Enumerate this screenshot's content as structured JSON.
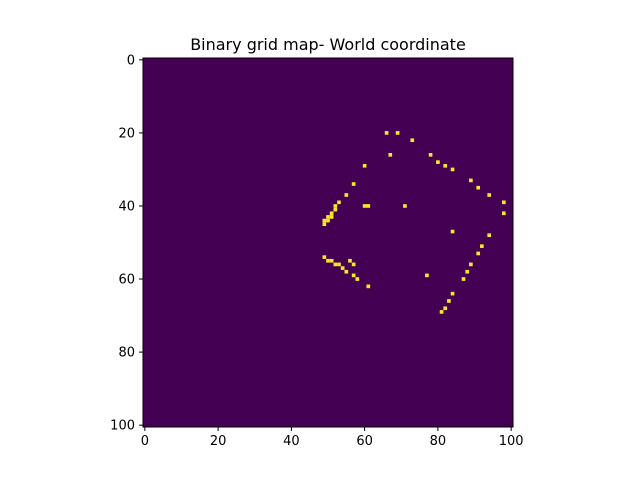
{
  "chart_data": {
    "type": "heatmap",
    "title": "Binary grid map- World coordinate",
    "xlabel": "",
    "ylabel": "",
    "grid": false,
    "xlim": [
      -0.5,
      100.5
    ],
    "ylim": [
      100.5,
      -0.5
    ],
    "x_ticks": [
      0,
      20,
      40,
      60,
      80,
      100
    ],
    "y_ticks": [
      0,
      20,
      40,
      60,
      80,
      100
    ],
    "x_tick_labels": [
      "0",
      "20",
      "40",
      "60",
      "80",
      "100"
    ],
    "y_tick_labels": [
      "0",
      "20",
      "40",
      "60",
      "80",
      "100"
    ],
    "colormap": "viridis",
    "background_value": 0,
    "background_color": "#440154",
    "occupied_value": 1,
    "occupied_color": "#fde725",
    "occupied_cells": [
      {
        "x": 66,
        "y": 20
      },
      {
        "x": 69,
        "y": 20
      },
      {
        "x": 73,
        "y": 22
      },
      {
        "x": 67,
        "y": 26
      },
      {
        "x": 78,
        "y": 26
      },
      {
        "x": 80,
        "y": 28
      },
      {
        "x": 82,
        "y": 29
      },
      {
        "x": 60,
        "y": 29
      },
      {
        "x": 84,
        "y": 30
      },
      {
        "x": 89,
        "y": 33
      },
      {
        "x": 57,
        "y": 34
      },
      {
        "x": 91,
        "y": 35
      },
      {
        "x": 55,
        "y": 37
      },
      {
        "x": 94,
        "y": 37
      },
      {
        "x": 53,
        "y": 39
      },
      {
        "x": 98,
        "y": 39
      },
      {
        "x": 52,
        "y": 40
      },
      {
        "x": 60,
        "y": 40
      },
      {
        "x": 61,
        "y": 40
      },
      {
        "x": 71,
        "y": 40
      },
      {
        "x": 52,
        "y": 41
      },
      {
        "x": 51,
        "y": 42
      },
      {
        "x": 98,
        "y": 42
      },
      {
        "x": 50,
        "y": 43
      },
      {
        "x": 51,
        "y": 43
      },
      {
        "x": 50,
        "y": 44
      },
      {
        "x": 49,
        "y": 44
      },
      {
        "x": 49,
        "y": 45
      },
      {
        "x": 84,
        "y": 47
      },
      {
        "x": 94,
        "y": 48
      },
      {
        "x": 92,
        "y": 51
      },
      {
        "x": 91,
        "y": 53
      },
      {
        "x": 49,
        "y": 54
      },
      {
        "x": 50,
        "y": 55
      },
      {
        "x": 51,
        "y": 55
      },
      {
        "x": 52,
        "y": 56
      },
      {
        "x": 53,
        "y": 56
      },
      {
        "x": 56,
        "y": 55
      },
      {
        "x": 54,
        "y": 57
      },
      {
        "x": 57,
        "y": 56
      },
      {
        "x": 55,
        "y": 58
      },
      {
        "x": 89,
        "y": 56
      },
      {
        "x": 57,
        "y": 59
      },
      {
        "x": 58,
        "y": 60
      },
      {
        "x": 77,
        "y": 59
      },
      {
        "x": 88,
        "y": 58
      },
      {
        "x": 87,
        "y": 60
      },
      {
        "x": 61,
        "y": 62
      },
      {
        "x": 84,
        "y": 64
      },
      {
        "x": 83,
        "y": 66
      },
      {
        "x": 82,
        "y": 68
      },
      {
        "x": 81,
        "y": 69
      }
    ]
  }
}
